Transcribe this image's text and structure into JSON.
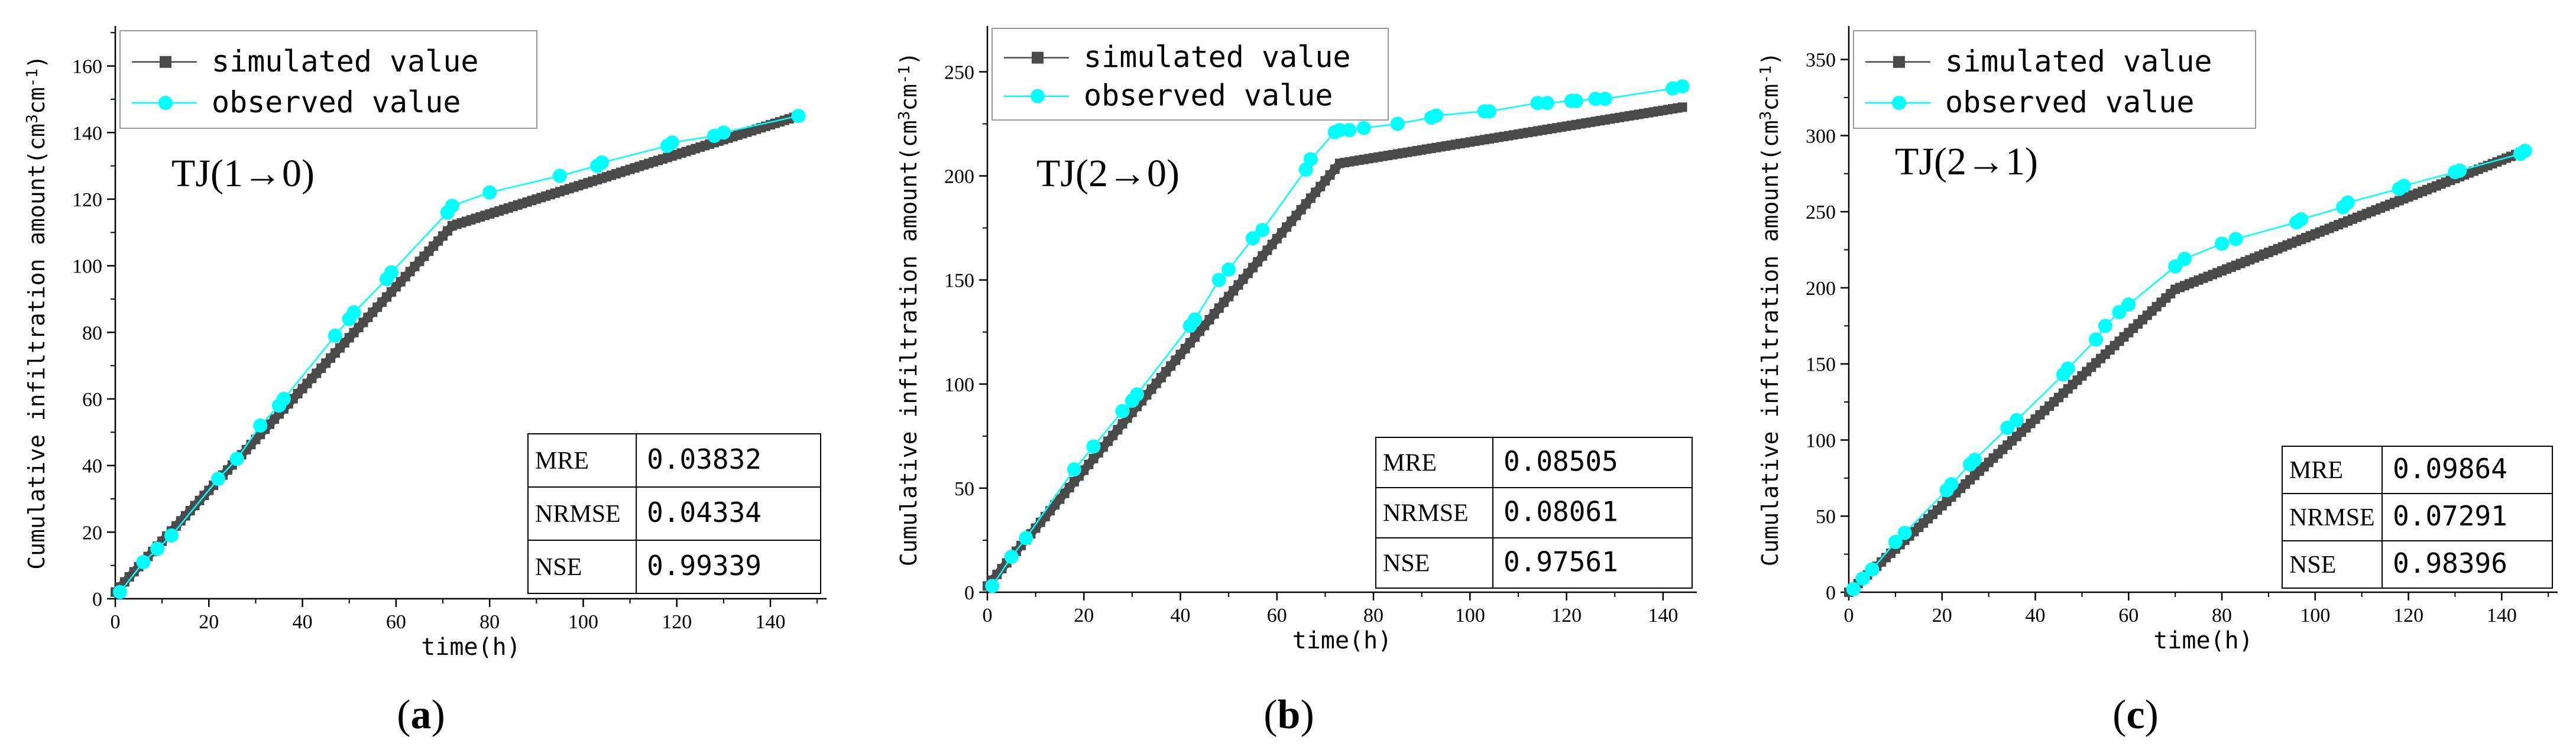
{
  "colors": {
    "simulated": "#4a4a4a",
    "observed": "#00ffff",
    "axis": "#000000"
  },
  "legend": {
    "simulated": "simulated value",
    "observed": "observed value"
  },
  "common": {
    "xlabel": "time(h)",
    "ylabel_main": "Cumulative infiltration amount",
    "ylabel_unit_open": "(cm",
    "ylabel_unit_sup1": "3",
    "ylabel_unit_mid": "cm",
    "ylabel_unit_sup2": "-1",
    "ylabel_unit_close": ")"
  },
  "chart_data": [
    {
      "type": "line",
      "panel_label": "(a)",
      "panel_letter": "a",
      "title": "TJ(1→0)",
      "xlabel": "time(h)",
      "ylabel": "Cumulative infiltration amount (cm3cm-1)",
      "xlim": [
        0,
        152
      ],
      "ylim": [
        0,
        172
      ],
      "xticks": [
        0,
        20,
        40,
        60,
        80,
        100,
        120,
        140
      ],
      "yticks": [
        0,
        20,
        40,
        60,
        80,
        100,
        120,
        140,
        160
      ],
      "series": [
        {
          "name": "simulated value",
          "x": [
            0,
            72,
            146
          ],
          "y": [
            2,
            112,
            145
          ]
        },
        {
          "name": "observed value",
          "x": [
            1,
            6,
            9,
            12,
            22,
            26,
            31,
            35,
            36,
            47,
            50,
            51,
            58,
            59,
            71,
            72,
            80,
            95,
            103,
            104,
            118,
            119,
            128,
            130,
            146
          ],
          "y": [
            2,
            11,
            15,
            19,
            36,
            42,
            52,
            58,
            60,
            79,
            84,
            86,
            96,
            98,
            116,
            118,
            122,
            127,
            130,
            131,
            136,
            137,
            139,
            140,
            145
          ]
        }
      ],
      "metrics": [
        {
          "name": "MRE",
          "value": "0.03832"
        },
        {
          "name": "NRMSE",
          "value": "0.04334"
        },
        {
          "name": "NSE",
          "value": "0.99339"
        }
      ]
    },
    {
      "type": "line",
      "panel_label": "(b)",
      "panel_letter": "b",
      "title": "TJ(2→0)",
      "xlabel": "time(h)",
      "ylabel": "Cumulative infiltration amount (cm3cm-1)",
      "xlim": [
        0,
        147
      ],
      "ylim": [
        0,
        272
      ],
      "xticks": [
        0,
        20,
        40,
        60,
        80,
        100,
        120,
        140
      ],
      "yticks": [
        0,
        50,
        100,
        150,
        200,
        250
      ],
      "series": [
        {
          "name": "simulated value",
          "x": [
            0,
            73,
            144
          ],
          "y": [
            3,
            206,
            233
          ]
        },
        {
          "name": "observed value",
          "x": [
            1,
            5,
            8,
            18,
            22,
            28,
            30,
            31,
            42,
            43,
            48,
            50,
            55,
            57,
            66,
            67,
            72,
            73,
            75,
            78,
            85,
            92,
            93,
            103,
            104,
            114,
            116,
            121,
            122,
            126,
            128,
            142,
            144
          ],
          "y": [
            3,
            17,
            26,
            59,
            70,
            87,
            92,
            95,
            128,
            131,
            150,
            155,
            170,
            174,
            203,
            208,
            221,
            222,
            222,
            223,
            225,
            228,
            229,
            231,
            231,
            235,
            235,
            236,
            236,
            237,
            237,
            242,
            243
          ]
        }
      ],
      "metrics": [
        {
          "name": "MRE",
          "value": "0.08505"
        },
        {
          "name": "NRMSE",
          "value": "0.08061"
        },
        {
          "name": "NSE",
          "value": "0.97561"
        }
      ]
    },
    {
      "type": "line",
      "panel_label": "(c)",
      "panel_letter": "c",
      "title": "TJ(2→1)",
      "xlabel": "time(h)",
      "ylabel": "Cumulative infiltration amount (cm3cm-1)",
      "xlim": [
        0,
        152
      ],
      "ylim": [
        0,
        372
      ],
      "xticks": [
        0,
        20,
        40,
        60,
        80,
        100,
        120,
        140
      ],
      "yticks": [
        0,
        50,
        100,
        150,
        200,
        250,
        300,
        350
      ],
      "series": [
        {
          "name": "simulated value",
          "x": [
            0,
            70,
            145
          ],
          "y": [
            0,
            199,
            290
          ]
        },
        {
          "name": "observed value",
          "x": [
            1,
            3,
            5,
            10,
            12,
            21,
            22,
            26,
            27,
            34,
            36,
            46,
            47,
            53,
            55,
            58,
            60,
            70,
            72,
            80,
            83,
            96,
            97,
            106,
            107,
            118,
            119,
            130,
            131,
            144,
            145
          ],
          "y": [
            2,
            9,
            15,
            33,
            39,
            67,
            71,
            84,
            87,
            108,
            113,
            143,
            147,
            166,
            175,
            184,
            189,
            214,
            219,
            229,
            232,
            243,
            245,
            253,
            256,
            265,
            267,
            276,
            277,
            288,
            290
          ]
        }
      ],
      "metrics": [
        {
          "name": "MRE",
          "value": "0.09864"
        },
        {
          "name": "NRMSE",
          "value": "0.07291"
        },
        {
          "name": "NSE",
          "value": "0.98396"
        }
      ]
    }
  ]
}
